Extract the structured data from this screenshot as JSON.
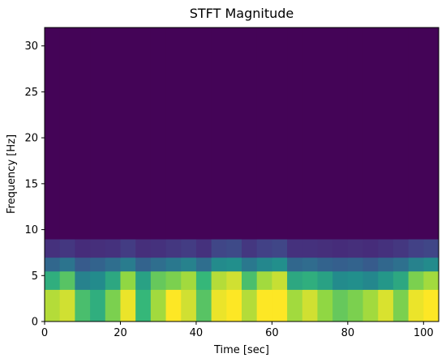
{
  "chart_data": {
    "type": "heatmap",
    "title": "STFT Magnitude",
    "xlabel": "Time [sec]",
    "ylabel": "Frequency [Hz]",
    "xlim": [
      0,
      104
    ],
    "ylim": [
      0,
      32
    ],
    "x_ticks": [
      0,
      20,
      40,
      60,
      80,
      100
    ],
    "y_ticks": [
      0,
      5,
      10,
      15,
      20,
      25,
      30
    ],
    "colormap": "viridis",
    "color_range": [
      0,
      1
    ],
    "background_color": "#440154",
    "grid": false,
    "time_step": 4,
    "freq_step": 0.5,
    "band_magnitudes": [
      {
        "f_range": [
          0,
          3.5
        ],
        "values": [
          0.92,
          0.95,
          0.78,
          0.72,
          0.85,
          0.98,
          0.75,
          0.9,
          1.0,
          0.95,
          0.8,
          0.98,
          1.0,
          0.92,
          1.0,
          1.0,
          0.9,
          0.95,
          0.88,
          0.82,
          0.85,
          0.9,
          0.96,
          0.85,
          0.98,
          1.0
        ]
      },
      {
        "f_range": [
          3.5,
          5.5
        ],
        "values": [
          0.72,
          0.8,
          0.55,
          0.6,
          0.7,
          0.88,
          0.68,
          0.82,
          0.85,
          0.9,
          0.75,
          0.92,
          0.95,
          0.78,
          0.9,
          0.94,
          0.7,
          0.72,
          0.68,
          0.6,
          0.62,
          0.58,
          0.65,
          0.7,
          0.85,
          0.9
        ]
      },
      {
        "f_range": [
          5.5,
          7
        ],
        "values": [
          0.42,
          0.48,
          0.36,
          0.4,
          0.45,
          0.52,
          0.4,
          0.45,
          0.5,
          0.55,
          0.45,
          0.6,
          0.62,
          0.5,
          0.58,
          0.62,
          0.42,
          0.44,
          0.4,
          0.38,
          0.4,
          0.36,
          0.42,
          0.46,
          0.55,
          0.6
        ]
      },
      {
        "f_range": [
          7,
          9
        ],
        "values": [
          0.18,
          0.2,
          0.16,
          0.17,
          0.18,
          0.22,
          0.17,
          0.18,
          0.2,
          0.22,
          0.18,
          0.26,
          0.28,
          0.2,
          0.24,
          0.26,
          0.18,
          0.18,
          0.17,
          0.16,
          0.17,
          0.16,
          0.18,
          0.2,
          0.24,
          0.26
        ]
      },
      {
        "f_range": [
          9,
          32
        ],
        "values": [
          0.01,
          0.01,
          0.01,
          0.01,
          0.01,
          0.01,
          0.01,
          0.01,
          0.01,
          0.01,
          0.01,
          0.01,
          0.01,
          0.01,
          0.01,
          0.01,
          0.01,
          0.01,
          0.01,
          0.01,
          0.01,
          0.01,
          0.01,
          0.01,
          0.01,
          0.01
        ]
      }
    ]
  }
}
